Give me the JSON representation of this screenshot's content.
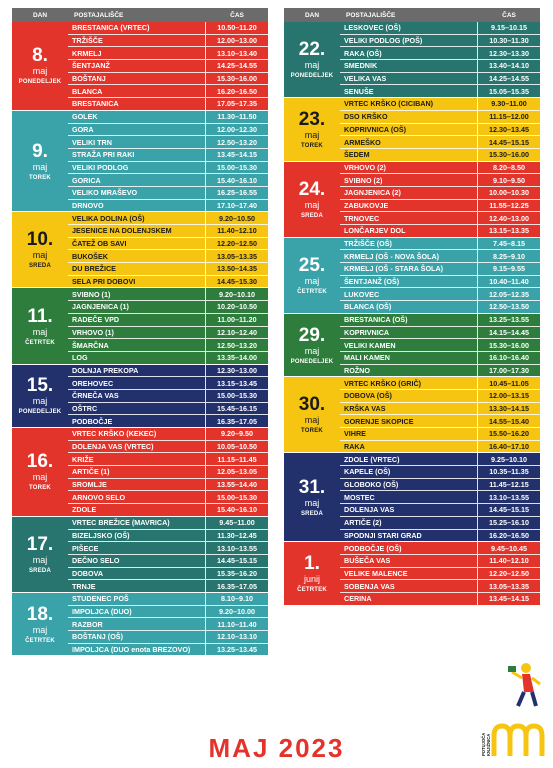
{
  "header": {
    "dan": "DAN",
    "postajalisce": "POSTAJALIŠČE",
    "cas": "ČAS"
  },
  "left": [
    {
      "num": "8.",
      "month": "maj",
      "weekday": "PONEDELJEK",
      "color": "#e3342c",
      "rows": [
        [
          "BRESTANICA (VRTEC)",
          "10.50–11.20"
        ],
        [
          "TRŽIŠČE",
          "12.00–13.00"
        ],
        [
          "KRMELJ",
          "13.10–13.40"
        ],
        [
          "ŠENTJANŽ",
          "14.25–14.55"
        ],
        [
          "BOŠTANJ",
          "15.30–16.00"
        ],
        [
          "BLANCA",
          "16.20–16.50"
        ],
        [
          "BRESTANICA",
          "17.05–17.35"
        ]
      ]
    },
    {
      "num": "9.",
      "month": "maj",
      "weekday": "TOREK",
      "color": "#3aa3a9",
      "rows": [
        [
          "GOLEK",
          "11.30–11.50"
        ],
        [
          "GORA",
          "12.00–12.30"
        ],
        [
          "VELIKI TRN",
          "12.50–13.20"
        ],
        [
          "STRAŽA PRI RAKI",
          "13.45–14.15"
        ],
        [
          "VELIKI PODLOG",
          "15.00–15.30"
        ],
        [
          "GORICA",
          "15.40–16.10"
        ],
        [
          "VELIKO MRAŠEVO",
          "16.25–16.55"
        ],
        [
          "DRNOVO",
          "17.10–17.40"
        ]
      ]
    },
    {
      "num": "10.",
      "month": "maj",
      "weekday": "SREDA",
      "color": "#f6c512",
      "rows": [
        [
          "VELIKA DOLINA (OŠ)",
          "9.20–10.50"
        ],
        [
          "JESENICE NA DOLENJSKEM",
          "11.40–12.10"
        ],
        [
          "ČATEŽ OB SAVI",
          "12.20–12.50"
        ],
        [
          "BUKOŠEK",
          "13.05–13.35"
        ],
        [
          "DU BREŽICE",
          "13.50–14.35"
        ],
        [
          "SELA PRI DOBOVI",
          "14.45–15.30"
        ]
      ]
    },
    {
      "num": "11.",
      "month": "maj",
      "weekday": "ČETRTEK",
      "color": "#2f7d3c",
      "rows": [
        [
          "SVIBNO (1)",
          "9.20–10.10"
        ],
        [
          "JAGNJENICA (1)",
          "10.20–10.50"
        ],
        [
          "RADEČE VPD",
          "11.00–11.20"
        ],
        [
          "VRHOVO (1)",
          "12.10–12.40"
        ],
        [
          "ŠMARČNA",
          "12.50–13.20"
        ],
        [
          "LOG",
          "13.35–14.00"
        ]
      ]
    },
    {
      "num": "15.",
      "month": "maj",
      "weekday": "PONEDELJEK",
      "color": "#22306c",
      "rows": [
        [
          "DOLNJA PREKOPA",
          "12.30–13.00"
        ],
        [
          "OREHOVEC",
          "13.15–13.45"
        ],
        [
          "ČRNEČA VAS",
          "15.00–15.30"
        ],
        [
          "OŠTRC",
          "15.45–16.15"
        ],
        [
          "PODBOČJE",
          "16.35–17.05"
        ]
      ]
    },
    {
      "num": "16.",
      "month": "maj",
      "weekday": "TOREK",
      "color": "#e3342c",
      "rows": [
        [
          "VRTEC KRŠKO (KEKEC)",
          "9.20–9.50"
        ],
        [
          "DOLENJA VAS (VRTEC)",
          "10.05–10.50"
        ],
        [
          "KRIŽE",
          "11.15–11.45"
        ],
        [
          "ARTIČE (1)",
          "12.05–13.05"
        ],
        [
          "SROMLJE",
          "13.55–14.40"
        ],
        [
          "ARNOVO SELO",
          "15.00–15.30"
        ],
        [
          "ZDOLE",
          "15.40–16.10"
        ]
      ]
    },
    {
      "num": "17.",
      "month": "maj",
      "weekday": "SREDA",
      "color": "#27756e",
      "rows": [
        [
          "VRTEC BREŽICE (MAVRICA)",
          "9.45–11.00"
        ],
        [
          "BIZELJSKO (OŠ)",
          "11.30–12.45"
        ],
        [
          "PIŠECE",
          "13.10–13.55"
        ],
        [
          "DEČNO SELO",
          "14.45–15.15"
        ],
        [
          "DOBOVA",
          "15.35–16.20"
        ],
        [
          "TRNJE",
          "16.35–17.05"
        ]
      ]
    },
    {
      "num": "18.",
      "month": "maj",
      "weekday": "ČETRTEK",
      "color": "#3aa3a9",
      "rows": [
        [
          "STUDENEC POŠ",
          "8.10–9.10"
        ],
        [
          "IMPOLJCA (DUO)",
          "9.20–10.00"
        ],
        [
          "RAZBOR",
          "11.10–11.40"
        ],
        [
          "BOŠTANJ (OŠ)",
          "12.10–13.10"
        ],
        [
          "IMPOLJCA (DUO enota BREZOVO)",
          "13.25–13.45"
        ]
      ]
    }
  ],
  "right": [
    {
      "num": "22.",
      "month": "maj",
      "weekday": "PONEDELJEK",
      "color": "#27756e",
      "rows": [
        [
          "LESKOVEC (OŠ)",
          "9.15–10.15"
        ],
        [
          "VELIKI PODLOG (POŠ)",
          "10.30–11.30"
        ],
        [
          "RAKA (OŠ)",
          "12.30–13.30"
        ],
        [
          "SMEDNIK",
          "13.40–14.10"
        ],
        [
          "VELIKA VAS",
          "14.25–14.55"
        ],
        [
          "SENUŠE",
          "15.05–15.35"
        ]
      ]
    },
    {
      "num": "23.",
      "month": "maj",
      "weekday": "TOREK",
      "color": "#f6c512",
      "rows": [
        [
          "VRTEC KRŠKO (CICIBAN)",
          "9.30–11.00"
        ],
        [
          "DSO KRŠKO",
          "11.15–12.00"
        ],
        [
          "KOPRIVNICA (OŠ)",
          "12.30–13.45"
        ],
        [
          "ARMEŠKO",
          "14.45–15.15"
        ],
        [
          "ŠEDEM",
          "15.30–16.00"
        ]
      ]
    },
    {
      "num": "24.",
      "month": "maj",
      "weekday": "SREDA",
      "color": "#e3342c",
      "rows": [
        [
          "VRHOVO (2)",
          "8.20–8.50"
        ],
        [
          "SVIBNO (2)",
          "9.10–9.50"
        ],
        [
          "JAGNJENICA (2)",
          "10.00–10.30"
        ],
        [
          "ZABUKOVJE",
          "11.55–12.25"
        ],
        [
          "TRNOVEC",
          "12.40–13.00"
        ],
        [
          "LONČARJEV DOL",
          "13.15–13.35"
        ]
      ]
    },
    {
      "num": "25.",
      "month": "maj",
      "weekday": "ČETRTEK",
      "color": "#3aa3a9",
      "rows": [
        [
          "TRŽIŠČE (OŠ)",
          "7.45–8.15"
        ],
        [
          "KRMELJ (OŠ - NOVA ŠOLA)",
          "8.25–9.10"
        ],
        [
          "KRMELJ (OŠ - STARA ŠOLA)",
          "9.15–9.55"
        ],
        [
          "ŠENTJANŽ (OŠ)",
          "10.40–11.40"
        ],
        [
          "LUKOVEC",
          "12.05–12.35"
        ],
        [
          "BLANCA (OŠ)",
          "12.50–13.50"
        ]
      ]
    },
    {
      "num": "29.",
      "month": "maj",
      "weekday": "PONEDELJEK",
      "color": "#2f7d3c",
      "rows": [
        [
          "BRESTANICA (OŠ)",
          "13.25–13.55"
        ],
        [
          "KOPRIVNICA",
          "14.15–14.45"
        ],
        [
          "VELIKI KAMEN",
          "15.30–16.00"
        ],
        [
          "MALI KAMEN",
          "16.10–16.40"
        ],
        [
          "ROŽNO",
          "17.00–17.30"
        ]
      ]
    },
    {
      "num": "30.",
      "month": "maj",
      "weekday": "TOREK",
      "color": "#f6c512",
      "rows": [
        [
          "VRTEC KRŠKO (GRIČ)",
          "10.45–11.05"
        ],
        [
          "DOBOVA (OŠ)",
          "12.00–13.15"
        ],
        [
          "KRŠKA VAS",
          "13.30–14.15"
        ],
        [
          "GORENJE SKOPICE",
          "14.55–15.40"
        ],
        [
          "VIHRE",
          "15.50–16.20"
        ],
        [
          "RAKA",
          "16.40–17.10"
        ]
      ]
    },
    {
      "num": "31.",
      "month": "maj",
      "weekday": "SREDA",
      "color": "#22306c",
      "rows": [
        [
          "ZDOLE (VRTEC)",
          "9.25–10.10"
        ],
        [
          "KAPELE (OŠ)",
          "10.35–11.35"
        ],
        [
          "GLOBOKO (OŠ)",
          "11.45–12.15"
        ],
        [
          "MOSTEC",
          "13.10–13.55"
        ],
        [
          "DOLENJA VAS",
          "14.45–15.15"
        ],
        [
          "ARTIČE (2)",
          "15.25–16.10"
        ],
        [
          "SPODNJI STARI GRAD",
          "16.20–16.50"
        ]
      ]
    },
    {
      "num": "1.",
      "month": "junij",
      "weekday": "ČETRTEK",
      "color": "#e3342c",
      "rows": [
        [
          "PODBOČJE (OŠ)",
          "9.45–10.45"
        ],
        [
          "BUŠEČA VAS",
          "11.40–12.10"
        ],
        [
          "VELIKE MALENCE",
          "12.20–12.50"
        ],
        [
          "SOBENJA VAS",
          "13.05–13.35"
        ],
        [
          "CERINA",
          "13.45–14.15"
        ]
      ]
    }
  ],
  "footer": {
    "title": "MAJ 2023",
    "logo_text": "POTUJOČA KNJIŽNICA"
  }
}
